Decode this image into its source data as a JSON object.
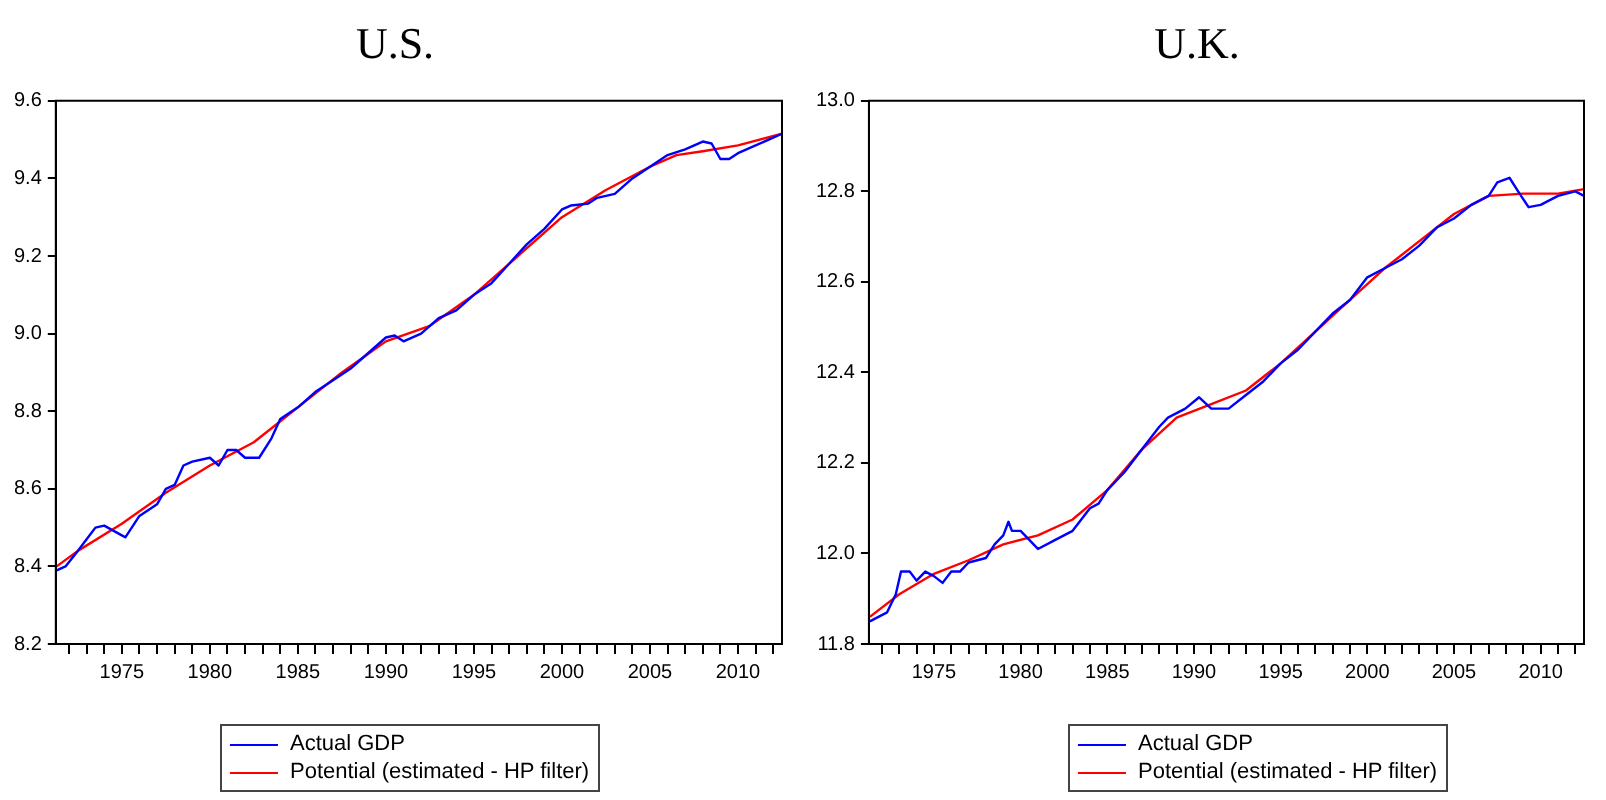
{
  "chart_data": [
    {
      "type": "line",
      "title": "U.S.",
      "legend": "bottom",
      "marker": "none",
      "grid": false,
      "xlim": [
        1971.25,
        2012.5
      ],
      "xticks": [
        {
          "value": 1972,
          "label": null
        },
        {
          "value": 1973,
          "label": null
        },
        {
          "value": 1974,
          "label": null
        },
        1975,
        {
          "value": 1976,
          "label": null
        },
        {
          "value": 1977,
          "label": null
        },
        {
          "value": 1978,
          "label": null
        },
        {
          "value": 1979,
          "label": null
        },
        1980,
        {
          "value": 1981,
          "label": null
        },
        {
          "value": 1982,
          "label": null
        },
        {
          "value": 1983,
          "label": null
        },
        {
          "value": 1984,
          "label": null
        },
        1985,
        {
          "value": 1986,
          "label": null
        },
        {
          "value": 1987,
          "label": null
        },
        {
          "value": 1988,
          "label": null
        },
        {
          "value": 1989,
          "label": null
        },
        1990,
        {
          "value": 1991,
          "label": null
        },
        {
          "value": 1992,
          "label": null
        },
        {
          "value": 1993,
          "label": null
        },
        {
          "value": 1994,
          "label": null
        },
        1995,
        {
          "value": 1996,
          "label": null
        },
        {
          "value": 1997,
          "label": null
        },
        {
          "value": 1998,
          "label": null
        },
        {
          "value": 1999,
          "label": null
        },
        2000,
        {
          "value": 2001,
          "label": null
        },
        {
          "value": 2002,
          "label": null
        },
        {
          "value": 2003,
          "label": null
        },
        {
          "value": 2004,
          "label": null
        },
        2005,
        {
          "value": 2006,
          "label": null
        },
        {
          "value": 2007,
          "label": null
        },
        {
          "value": 2008,
          "label": null
        },
        {
          "value": 2009,
          "label": null
        },
        2010,
        {
          "value": 2011,
          "label": null
        },
        {
          "value": 2012,
          "label": null
        }
      ],
      "ylim": [
        8.2,
        9.6
      ],
      "yticks": [
        8.2,
        8.4,
        8.6,
        8.8,
        {
          "value": 9,
          "label": "9.0"
        },
        9.2,
        9.4,
        9.6
      ],
      "series": [
        {
          "name": "Actual GDP",
          "color": "#0000ff",
          "x": [
            1971.3,
            1971.8,
            1972.5,
            1973,
            1973.5,
            1974,
            1975,
            1975.2,
            1976,
            1977,
            1977.5,
            1978,
            1978.5,
            1979,
            1980,
            1980.5,
            1981,
            1981.5,
            1982,
            1982.8,
            1983.5,
            1984,
            1985,
            1986,
            1987,
            1988,
            1989,
            1990,
            1990.5,
            1991,
            1992,
            1993,
            1994,
            1995,
            1996,
            1997,
            1998,
            1999,
            2000,
            2000.5,
            2001.5,
            2002,
            2003,
            2004,
            2005,
            2006,
            2007,
            2008,
            2008.5,
            2009,
            2009.5,
            2010,
            2011,
            2012,
            2012.5
          ],
          "values": [
            8.39,
            8.4,
            8.44,
            8.47,
            8.5,
            8.505,
            8.48,
            8.475,
            8.53,
            8.56,
            8.6,
            8.61,
            8.66,
            8.67,
            8.68,
            8.66,
            8.7,
            8.7,
            8.68,
            8.68,
            8.73,
            8.78,
            8.81,
            8.85,
            8.88,
            8.91,
            8.95,
            8.99,
            8.995,
            8.98,
            9,
            9.04,
            9.06,
            9.1,
            9.13,
            9.18,
            9.23,
            9.27,
            9.32,
            9.33,
            9.335,
            9.35,
            9.36,
            9.4,
            9.43,
            9.46,
            9.475,
            9.495,
            9.49,
            9.45,
            9.45,
            9.465,
            9.485,
            9.505,
            9.515
          ]
        },
        {
          "name": "Potential (estimated - HP filter)",
          "color": "#ff0000",
          "x": [
            1971.3,
            1972.5,
            1975,
            1977.5,
            1980,
            1982.5,
            1985,
            1987.5,
            1990,
            1992.5,
            1995,
            1997.5,
            2000,
            2002.5,
            2005,
            2006.5,
            2008,
            2010,
            2012.5
          ],
          "values": [
            8.4,
            8.44,
            8.51,
            8.59,
            8.66,
            8.72,
            8.81,
            8.9,
            8.98,
            9.02,
            9.1,
            9.2,
            9.3,
            9.37,
            9.43,
            9.46,
            9.47,
            9.485,
            9.515
          ]
        }
      ]
    },
    {
      "type": "line",
      "title": "U.K.",
      "legend": "bottom",
      "marker": "none",
      "grid": false,
      "xlim": [
        1971.25,
        2012.5
      ],
      "xticks": [
        {
          "value": 1972,
          "label": null
        },
        {
          "value": 1973,
          "label": null
        },
        {
          "value": 1974,
          "label": null
        },
        1975,
        {
          "value": 1976,
          "label": null
        },
        {
          "value": 1977,
          "label": null
        },
        {
          "value": 1978,
          "label": null
        },
        {
          "value": 1979,
          "label": null
        },
        1980,
        {
          "value": 1981,
          "label": null
        },
        {
          "value": 1982,
          "label": null
        },
        {
          "value": 1983,
          "label": null
        },
        {
          "value": 1984,
          "label": null
        },
        1985,
        {
          "value": 1986,
          "label": null
        },
        {
          "value": 1987,
          "label": null
        },
        {
          "value": 1988,
          "label": null
        },
        {
          "value": 1989,
          "label": null
        },
        1990,
        {
          "value": 1991,
          "label": null
        },
        {
          "value": 1992,
          "label": null
        },
        {
          "value": 1993,
          "label": null
        },
        {
          "value": 1994,
          "label": null
        },
        1995,
        {
          "value": 1996,
          "label": null
        },
        {
          "value": 1997,
          "label": null
        },
        {
          "value": 1998,
          "label": null
        },
        {
          "value": 1999,
          "label": null
        },
        2000,
        {
          "value": 2001,
          "label": null
        },
        {
          "value": 2002,
          "label": null
        },
        {
          "value": 2003,
          "label": null
        },
        {
          "value": 2004,
          "label": null
        },
        2005,
        {
          "value": 2006,
          "label": null
        },
        {
          "value": 2007,
          "label": null
        },
        {
          "value": 2008,
          "label": null
        },
        {
          "value": 2009,
          "label": null
        },
        2010,
        {
          "value": 2011,
          "label": null
        },
        {
          "value": 2012,
          "label": null
        }
      ],
      "ylim": [
        11.8,
        13
      ],
      "yticks": [
        11.8,
        {
          "value": 12,
          "label": "12.0"
        },
        12.2,
        12.4,
        12.6,
        12.8,
        {
          "value": 13,
          "label": "13.0"
        }
      ],
      "series": [
        {
          "name": "Actual GDP",
          "color": "#0000ff",
          "x": [
            1971.3,
            1971.8,
            1972.3,
            1972.8,
            1973.1,
            1973.6,
            1974,
            1974.5,
            1975,
            1975.5,
            1976,
            1976.5,
            1977,
            1978,
            1978.5,
            1979,
            1979.3,
            1979.5,
            1980,
            1980.5,
            1981,
            1982,
            1983,
            1984,
            1984.5,
            1985,
            1986,
            1987,
            1988,
            1988.5,
            1989.5,
            1990.3,
            1991,
            1992,
            1993,
            1994,
            1995,
            1996,
            1997,
            1998,
            1999,
            2000,
            2001,
            2002,
            2003,
            2004,
            2005,
            2006,
            2007,
            2007.5,
            2008.2,
            2008.7,
            2009.3,
            2010,
            2011,
            2012,
            2012.5
          ],
          "values": [
            11.85,
            11.86,
            11.87,
            11.91,
            11.96,
            11.96,
            11.94,
            11.96,
            11.95,
            11.935,
            11.96,
            11.96,
            11.98,
            11.99,
            12.02,
            12.04,
            12.07,
            12.05,
            12.05,
            12.03,
            12.01,
            12.03,
            12.05,
            12.1,
            12.11,
            12.14,
            12.18,
            12.23,
            12.28,
            12.3,
            12.32,
            12.345,
            12.32,
            12.32,
            12.35,
            12.38,
            12.42,
            12.45,
            12.49,
            12.53,
            12.56,
            12.61,
            12.63,
            12.65,
            12.68,
            12.72,
            12.74,
            12.77,
            12.79,
            12.82,
            12.83,
            12.8,
            12.765,
            12.77,
            12.79,
            12.8,
            12.79
          ]
        },
        {
          "name": "Potential (estimated - HP filter)",
          "color": "#ff0000",
          "x": [
            1971.3,
            1973,
            1975,
            1977,
            1979,
            1981,
            1983,
            1985,
            1987,
            1989,
            1991,
            1993,
            1995,
            1997,
            1999,
            2001,
            2003,
            2005,
            2007,
            2009,
            2011,
            2012.5
          ],
          "values": [
            11.86,
            11.91,
            11.955,
            11.985,
            12.02,
            12.04,
            12.075,
            12.14,
            12.23,
            12.3,
            12.33,
            12.36,
            12.42,
            12.49,
            12.56,
            12.63,
            12.69,
            12.75,
            12.79,
            12.795,
            12.795,
            12.805
          ]
        }
      ]
    }
  ]
}
